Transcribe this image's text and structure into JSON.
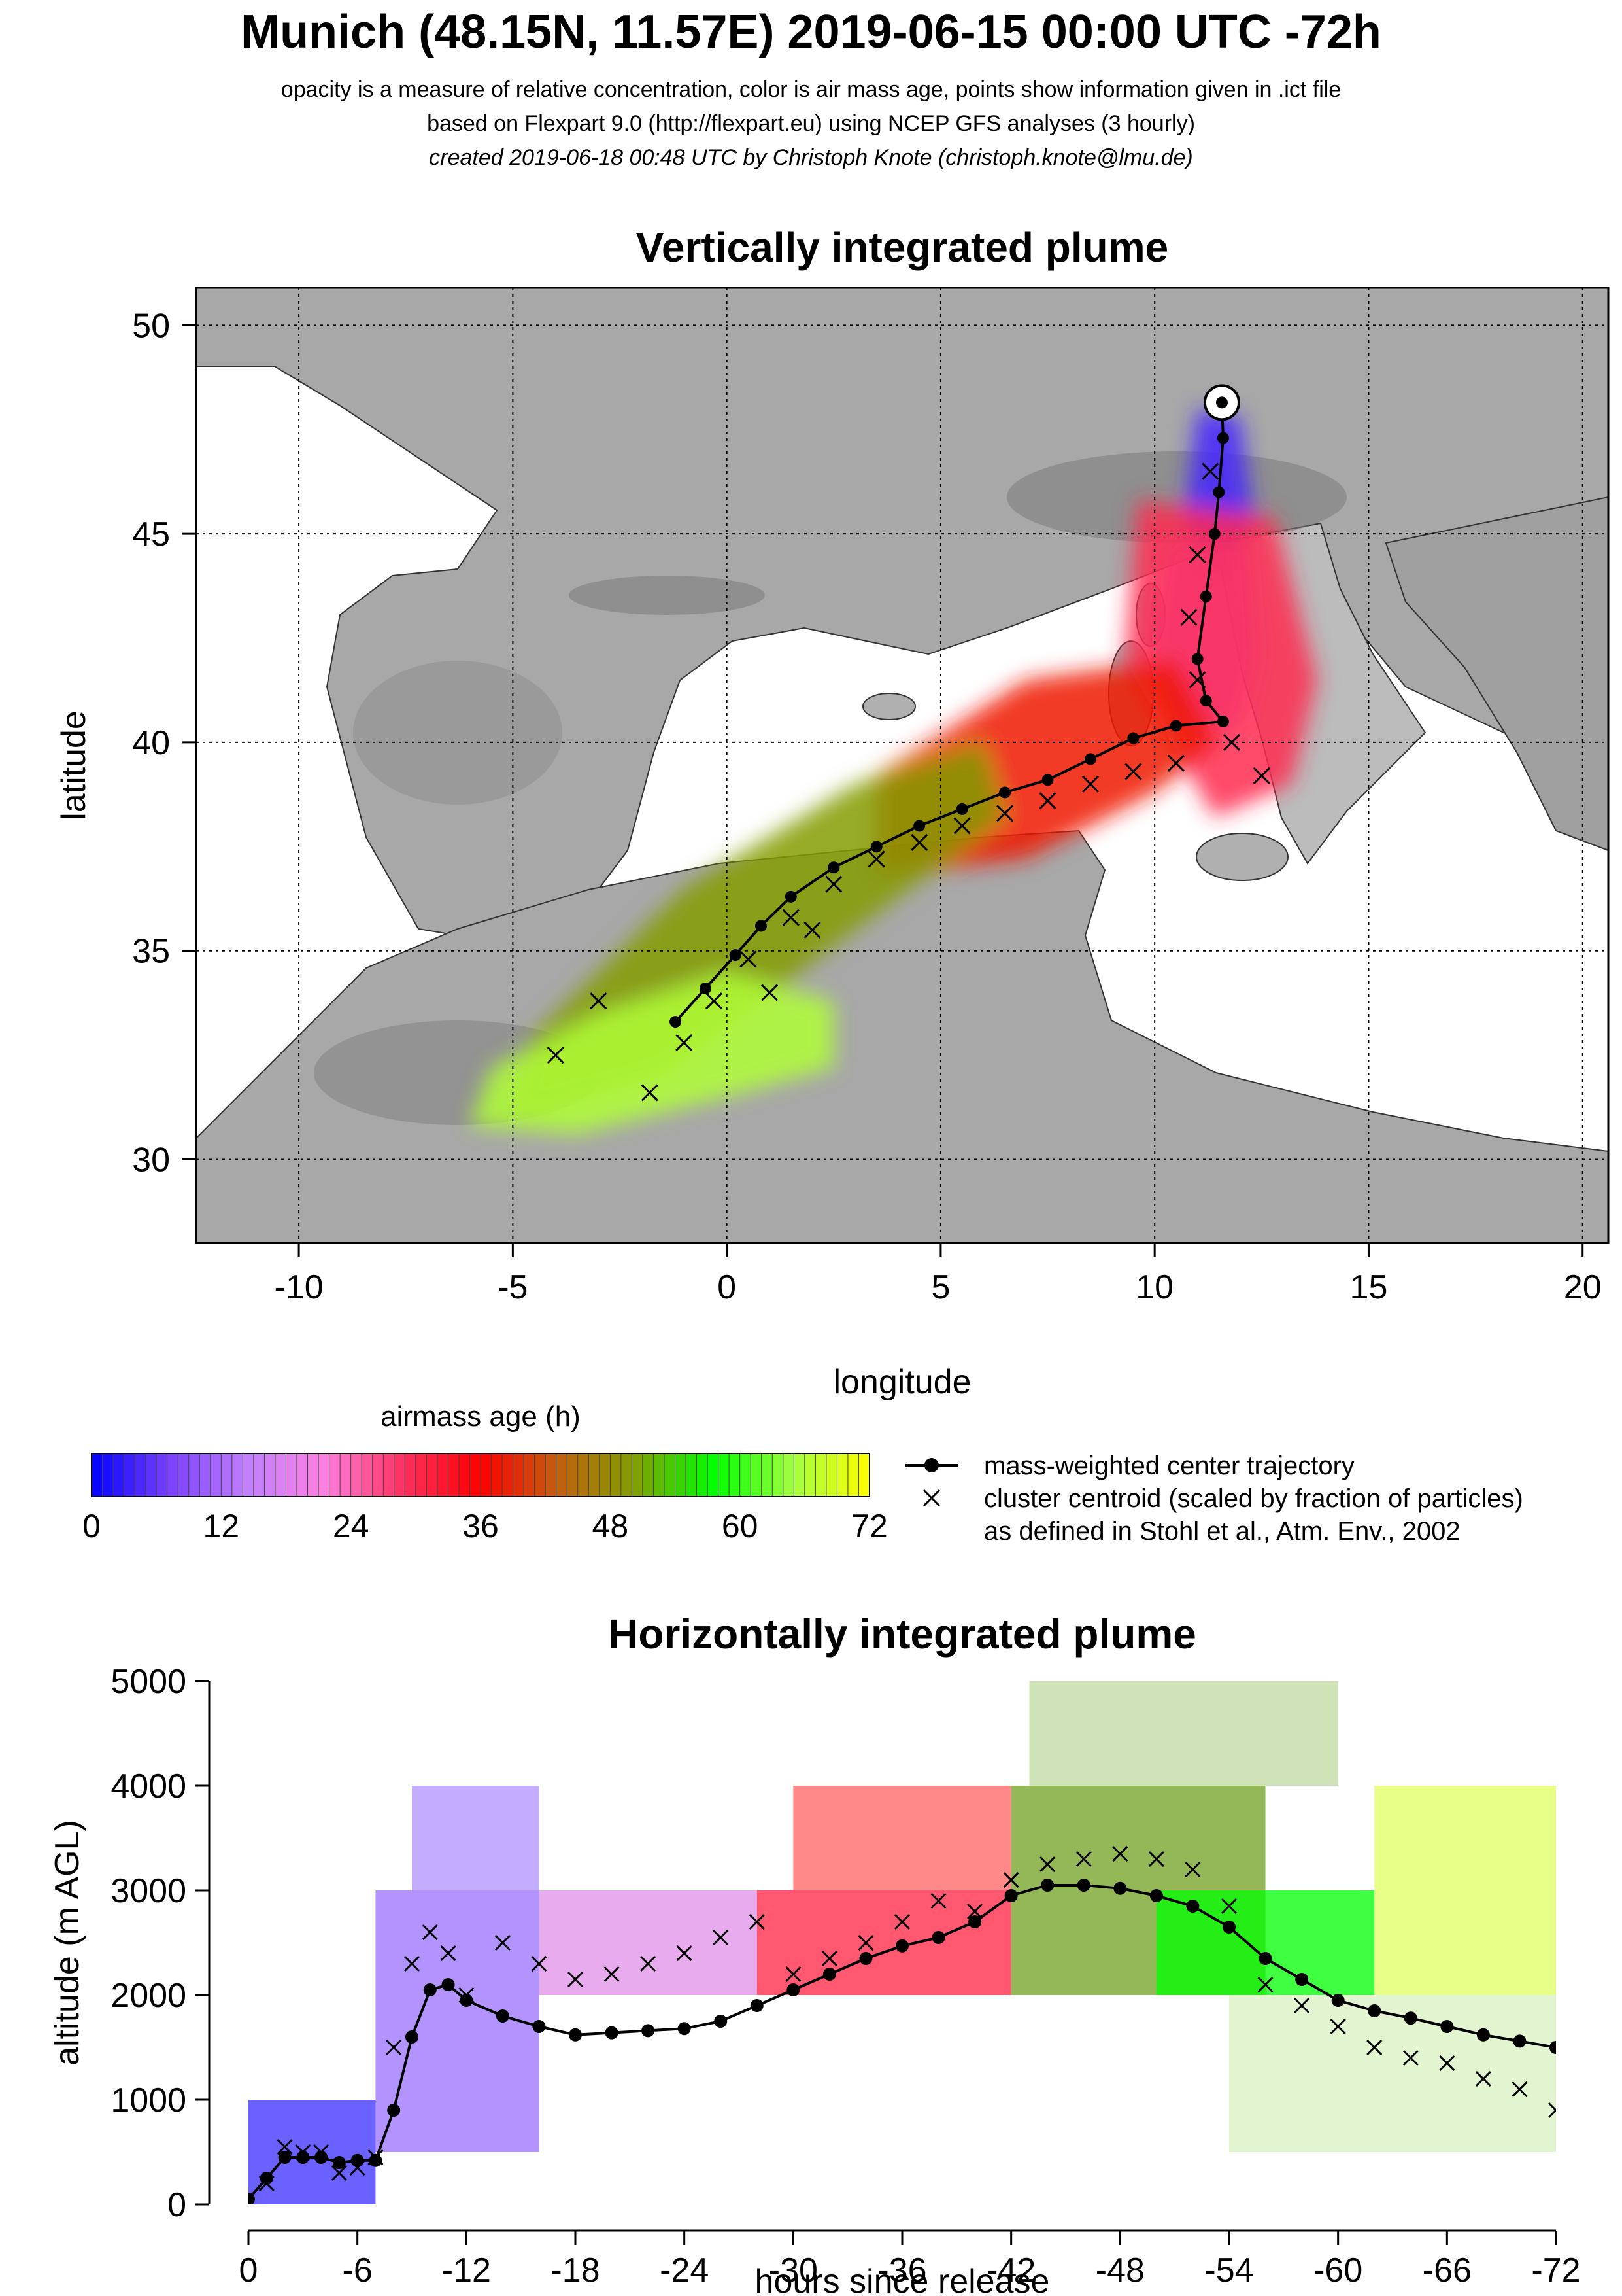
{
  "header": {
    "title": "Munich (48.15N, 11.57E) 2019-06-15 00:00 UTC -72h",
    "line1": "opacity is a measure of relative concentration, color is air mass age, points show information given in .ict file",
    "line2": "based on Flexpart 9.0 (http://flexpart.eu) using NCEP GFS analyses (3 hourly)",
    "line3": "created 2019-06-18 00:48 UTC by Christoph Knote (christoph.knote@lmu.de)"
  },
  "colors": {
    "age_scale": [
      "#0000ff",
      "#7a40ff",
      "#c080ff",
      "#ff80e0",
      "#ff3060",
      "#ff0000",
      "#c06010",
      "#80a000",
      "#00ff00",
      "#a0ff40",
      "#ffff00"
    ],
    "land": "#a8a8a8",
    "sea": "#ffffff",
    "trajectory": "#000000"
  },
  "chart_data": [
    {
      "type": "map",
      "title": "Vertically integrated plume",
      "xlabel": "longitude",
      "ylabel": "latitude",
      "xlim": [
        -12.4,
        20.6
      ],
      "ylim": [
        28.0,
        50.9
      ],
      "x_ticks": [
        "-10",
        "-5",
        "0",
        "5",
        "10",
        "15",
        "20"
      ],
      "x_tick_values": [
        -10,
        -5,
        0,
        5,
        10,
        15,
        20
      ],
      "y_ticks": [
        "30",
        "35",
        "40",
        "45",
        "50"
      ],
      "y_tick_values": [
        30,
        35,
        40,
        45,
        50
      ],
      "grid": true,
      "release_point": {
        "lon": 11.57,
        "lat": 48.15
      },
      "center_trajectory": {
        "lon": [
          11.57,
          11.6,
          11.5,
          11.4,
          11.2,
          11.0,
          11.2,
          11.6,
          10.5,
          9.5,
          8.5,
          7.5,
          6.5,
          5.5,
          4.5,
          3.5,
          2.5,
          1.5,
          0.8,
          0.2,
          -0.5,
          -1.2
        ],
        "lat": [
          48.15,
          47.3,
          46.0,
          45.0,
          43.5,
          42.0,
          41.0,
          40.5,
          40.4,
          40.1,
          39.6,
          39.1,
          38.8,
          38.4,
          38.0,
          37.5,
          37.0,
          36.3,
          35.6,
          34.9,
          34.1,
          33.3
        ]
      },
      "cluster_centroids": {
        "lon": [
          11.3,
          11.0,
          10.8,
          11.0,
          11.8,
          12.5,
          10.5,
          9.5,
          8.5,
          7.5,
          6.5,
          5.5,
          4.5,
          3.5,
          2.5,
          1.5,
          0.5,
          -0.3,
          -1.0,
          -1.8,
          1.0,
          2.0,
          -3.0,
          -4.0
        ],
        "lat": [
          46.5,
          44.5,
          43.0,
          41.5,
          40.0,
          39.2,
          39.5,
          39.3,
          39.0,
          38.6,
          38.3,
          38.0,
          37.6,
          37.2,
          36.6,
          35.8,
          34.8,
          33.8,
          32.8,
          31.6,
          34.0,
          35.5,
          33.8,
          32.5
        ]
      },
      "plume_bands": [
        {
          "age_h": 4,
          "lon": [
            11.0,
            12.0,
            12.3,
            11.8,
            11.2,
            10.7
          ],
          "lat": [
            48.0,
            47.8,
            45.5,
            44.0,
            44.0,
            45.5
          ]
        },
        {
          "age_h": 16,
          "lon": [
            10.3,
            12.2,
            12.4,
            12.0,
            10.5,
            9.9
          ],
          "lat": [
            44.8,
            44.8,
            42.0,
            40.4,
            40.4,
            42.5
          ]
        },
        {
          "age_h": 30,
          "lon": [
            9.6,
            12.8,
            13.8,
            13.2,
            11.4,
            9.3
          ],
          "lat": [
            45.8,
            45.4,
            41.5,
            39.0,
            38.2,
            42.0
          ]
        },
        {
          "age_h": 38,
          "lon": [
            3.5,
            7.0,
            10.5,
            11.5,
            10.0,
            7.0,
            3.5
          ],
          "lat": [
            39.2,
            41.5,
            42.0,
            40.0,
            38.8,
            37.2,
            36.8
          ]
        },
        {
          "age_h": 50,
          "lon": [
            -4.5,
            -1.0,
            3.0,
            6.0,
            6.5,
            3.0,
            -1.5,
            -5.0
          ],
          "lat": [
            33.0,
            36.5,
            39.0,
            40.0,
            38.2,
            35.5,
            32.0,
            31.0
          ]
        },
        {
          "age_h": 66,
          "lon": [
            -5.5,
            -3.0,
            0.0,
            2.5,
            2.5,
            0.0,
            -3.5,
            -6.0
          ],
          "lat": [
            32.2,
            33.5,
            34.5,
            33.8,
            32.2,
            31.5,
            30.6,
            30.8
          ]
        }
      ],
      "colorbar": {
        "title": "airmass age (h)",
        "range": [
          0,
          72
        ],
        "ticks": [
          "0",
          "12",
          "24",
          "36",
          "48",
          "60",
          "72"
        ],
        "tick_values": [
          0,
          12,
          24,
          36,
          48,
          60,
          72
        ]
      },
      "legend": [
        {
          "symbol": "line-dot",
          "label": "mass-weighted center trajectory"
        },
        {
          "symbol": "cross",
          "label": "cluster centroid (scaled by fraction of particles)"
        },
        {
          "symbol": "none",
          "label": "as defined in Stohl et al., Atm. Env., 2002"
        }
      ],
      "legend_position": "right of colorbar"
    },
    {
      "type": "line",
      "title": "Horizontally integrated plume",
      "xlabel": "hours since release",
      "ylabel": "altitude (m AGL)",
      "xlim": [
        0,
        -72
      ],
      "ylim": [
        0,
        5000
      ],
      "x_ticks": [
        "0",
        "-6",
        "-12",
        "-18",
        "-24",
        "-30",
        "-36",
        "-42",
        "-48",
        "-54",
        "-60",
        "-66",
        "-72"
      ],
      "x_tick_values": [
        0,
        -6,
        -12,
        -18,
        -24,
        -30,
        -36,
        -42,
        -48,
        -54,
        -60,
        -66,
        -72
      ],
      "y_ticks": [
        "0",
        "1000",
        "2000",
        "3000",
        "4000",
        "5000"
      ],
      "y_tick_values": [
        0,
        1000,
        2000,
        3000,
        4000,
        5000
      ],
      "series": [
        {
          "name": "mass-weighted center trajectory",
          "x": [
            0,
            -1,
            -2,
            -3,
            -4,
            -5,
            -6,
            -7,
            -8,
            -9,
            -10,
            -11,
            -12,
            -14,
            -16,
            -18,
            -20,
            -22,
            -24,
            -26,
            -28,
            -30,
            -32,
            -34,
            -36,
            -38,
            -40,
            -42,
            -44,
            -46,
            -48,
            -50,
            -52,
            -54,
            -56,
            -58,
            -60,
            -62,
            -64,
            -66,
            -68,
            -70,
            -72
          ],
          "y": [
            50,
            250,
            450,
            450,
            450,
            400,
            420,
            420,
            900,
            1600,
            2050,
            2100,
            1950,
            1800,
            1700,
            1620,
            1640,
            1660,
            1680,
            1750,
            1900,
            2050,
            2200,
            2350,
            2470,
            2550,
            2700,
            2950,
            3050,
            3050,
            3020,
            2950,
            2850,
            2650,
            2350,
            2150,
            1950,
            1850,
            1780,
            1700,
            1620,
            1560,
            1500
          ]
        },
        {
          "name": "cluster centroid (scaled by fraction of particles)",
          "x": [
            -1,
            -2,
            -3,
            -4,
            -5,
            -6,
            -7,
            -8,
            -9,
            -10,
            -11,
            -12,
            -14,
            -16,
            -18,
            -20,
            -22,
            -24,
            -26,
            -28,
            -30,
            -32,
            -34,
            -36,
            -38,
            -40,
            -42,
            -44,
            -46,
            -48,
            -50,
            -52,
            -54,
            -56,
            -58,
            -60,
            -62,
            -64,
            -66,
            -68,
            -70,
            -72
          ],
          "y": [
            200,
            550,
            500,
            500,
            300,
            350,
            450,
            1500,
            2300,
            2600,
            2400,
            2000,
            2500,
            2300,
            2150,
            2200,
            2300,
            2400,
            2550,
            2700,
            2200,
            2350,
            2500,
            2700,
            2900,
            2800,
            3100,
            3250,
            3300,
            3350,
            3300,
            3200,
            2850,
            2100,
            1900,
            1700,
            1500,
            1400,
            1350,
            1200,
            1100,
            900
          ]
        }
      ],
      "plume_blocks": [
        {
          "age_from": 0,
          "age_to": 7,
          "alt_from": 0,
          "alt_to": 1000,
          "color": "#3a2cff"
        },
        {
          "age_from": 7,
          "age_to": 16,
          "alt_from": 500,
          "alt_to": 3000,
          "color": "#9a70ff"
        },
        {
          "age_from": 9,
          "age_to": 16,
          "alt_from": 3000,
          "alt_to": 4000,
          "color": "#b090ff"
        },
        {
          "age_from": 16,
          "age_to": 28,
          "alt_from": 2000,
          "alt_to": 3000,
          "color": "#e090e8"
        },
        {
          "age_from": 28,
          "age_to": 42,
          "alt_from": 2000,
          "alt_to": 3000,
          "color": "#ff2040"
        },
        {
          "age_from": 30,
          "age_to": 42,
          "alt_from": 3000,
          "alt_to": 4000,
          "color": "#ff6060"
        },
        {
          "age_from": 42,
          "age_to": 56,
          "alt_from": 2000,
          "alt_to": 4000,
          "color": "#70a020"
        },
        {
          "age_from": 43,
          "age_to": 60,
          "alt_from": 4000,
          "alt_to": 5000,
          "color": "#c0d8a0"
        },
        {
          "age_from": 50,
          "age_to": 62,
          "alt_from": 2000,
          "alt_to": 3000,
          "color": "#00ff00"
        },
        {
          "age_from": 62,
          "age_to": 72,
          "alt_from": 2000,
          "alt_to": 4000,
          "color": "#e0ff60"
        },
        {
          "age_from": 54,
          "age_to": 72,
          "alt_from": 500,
          "alt_to": 2000,
          "color": "#d8f0c0"
        }
      ]
    }
  ]
}
